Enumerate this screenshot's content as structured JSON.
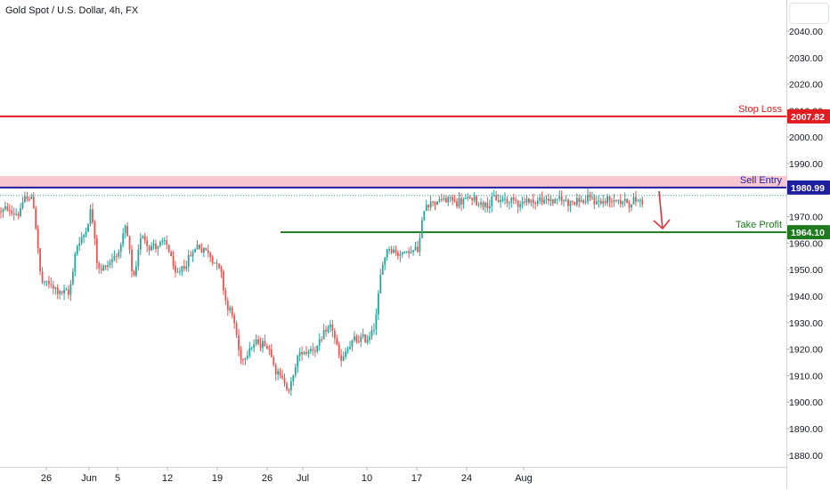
{
  "title": "Gold Spot / U.S. Dollar, 4h, FX",
  "colors": {
    "up": "#26a69a",
    "down": "#ef5350",
    "stop": "#e21c23",
    "entry": "#1e1ea0",
    "entry_zone": "#f8c7cf",
    "target": "#1f7a1f",
    "arrow": "#e0303a"
  },
  "chart_data": {
    "type": "candlestick",
    "title": "Gold Spot / U.S. Dollar, 4h, FX",
    "y_ticks": [
      2040,
      2030,
      2020,
      2010,
      2000,
      1990,
      1980,
      1970,
      1960,
      1950,
      1940,
      1930,
      1920,
      1910,
      1900,
      1890,
      1880
    ],
    "y_tick_labels": [
      "2040.00",
      "2030.00",
      "2020.00",
      "2010.00",
      "2000.00",
      "1990.00",
      "1980.00",
      "1970.00",
      "1960.00",
      "1950.00",
      "1940.00",
      "1930.00",
      "1920.00",
      "1910.00",
      "1900.00",
      "1890.00",
      "1880.00"
    ],
    "ylim": [
      1873,
      2048
    ],
    "x_tick_labels": [
      "26",
      "Jun",
      "5",
      "12",
      "19",
      "26",
      "Jul",
      "10",
      "17",
      "24",
      "Aug"
    ],
    "x_tick_dates": [
      "2023-05-26",
      "2023-06-01",
      "2023-06-05",
      "2023-06-12",
      "2023-06-19",
      "2023-06-26",
      "2023-07-01",
      "2023-07-10",
      "2023-07-17",
      "2023-07-24",
      "2023-08-01"
    ],
    "price_path": [
      [
        "2023-05-22",
        1972
      ],
      [
        "2023-05-23",
        1978
      ],
      [
        "2023-05-24",
        1976
      ],
      [
        "2023-05-25",
        1942
      ],
      [
        "2023-05-26",
        1944
      ],
      [
        "2023-05-29",
        1940
      ],
      [
        "2023-05-30",
        1962
      ],
      [
        "2023-05-31",
        1962
      ],
      [
        "2023-06-01",
        1976
      ],
      [
        "2023-06-02",
        1948
      ],
      [
        "2023-06-05",
        1958
      ],
      [
        "2023-06-06",
        1966
      ],
      [
        "2023-06-07",
        1940
      ],
      [
        "2023-06-08",
        1966
      ],
      [
        "2023-06-09",
        1960
      ],
      [
        "2023-06-12",
        1958
      ],
      [
        "2023-06-13",
        1944
      ],
      [
        "2023-06-14",
        1952
      ],
      [
        "2023-06-15",
        1956
      ],
      [
        "2023-06-16",
        1960
      ],
      [
        "2023-06-19",
        1952
      ],
      [
        "2023-06-20",
        1936
      ],
      [
        "2023-06-21",
        1932
      ],
      [
        "2023-06-22",
        1912
      ],
      [
        "2023-06-23",
        1922
      ],
      [
        "2023-06-26",
        1922
      ],
      [
        "2023-06-27",
        1912
      ],
      [
        "2023-06-28",
        1908
      ],
      [
        "2023-06-29",
        1904
      ],
      [
        "2023-06-30",
        1918
      ],
      [
        "2023-07-03",
        1922
      ],
      [
        "2023-07-04",
        1926
      ],
      [
        "2023-07-05",
        1928
      ],
      [
        "2023-07-06",
        1912
      ],
      [
        "2023-07-07",
        1922
      ],
      [
        "2023-07-10",
        1924
      ],
      [
        "2023-07-11",
        1932
      ],
      [
        "2023-07-12",
        1956
      ],
      [
        "2023-07-13",
        1960
      ],
      [
        "2023-07-14",
        1956
      ],
      [
        "2023-07-17",
        1958
      ],
      [
        "2023-07-18",
        1978
      ],
      [
        "2023-07-19",
        1976
      ]
    ],
    "levels": [
      {
        "label": "Stop Loss",
        "value": 2007.82,
        "value_label": "2007.82"
      },
      {
        "label": "Sell Entry",
        "value": 1980.99,
        "value_label": "1980.99"
      },
      {
        "label": "Take Profit",
        "value": 1964.1,
        "value_label": "1964.10"
      }
    ],
    "sell_zone": [
      1980.99,
      1985.0
    ],
    "dotted_level": 1978.0,
    "grid": false,
    "legend": "none"
  }
}
